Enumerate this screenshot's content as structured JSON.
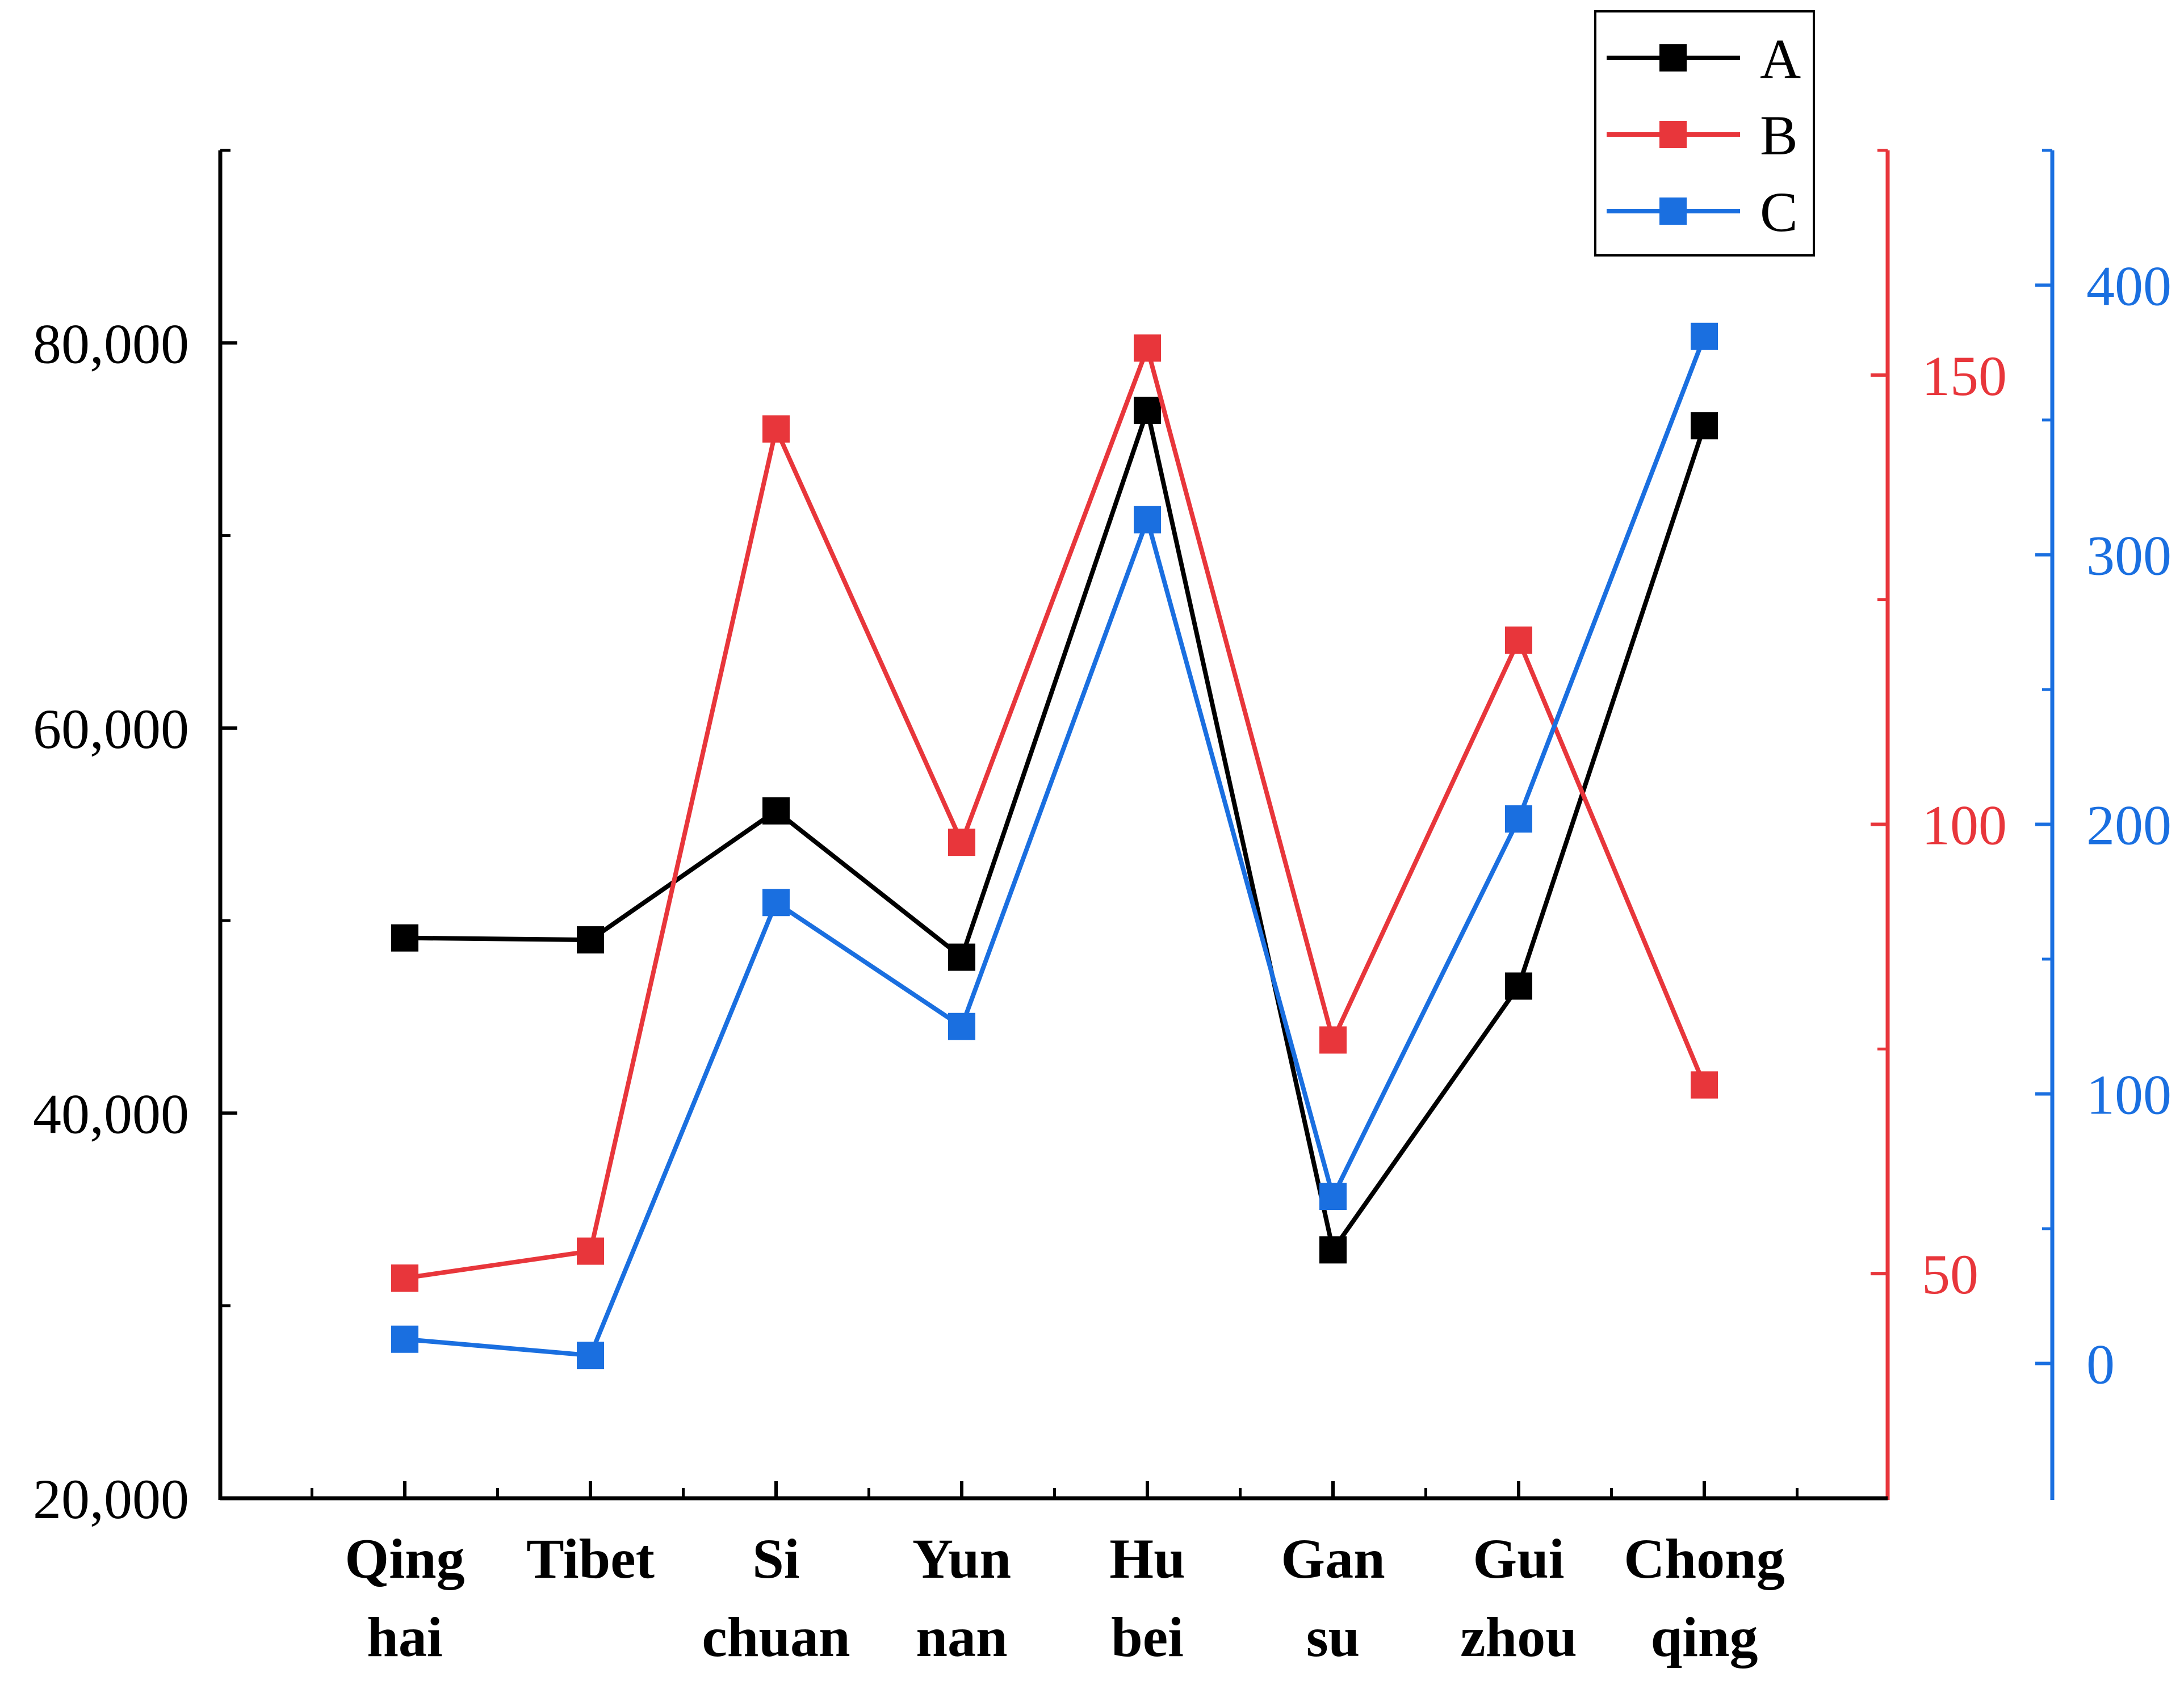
{
  "chart_data": {
    "type": "line",
    "title": "",
    "xlabel": "",
    "categories": [
      [
        "Qing",
        "hai"
      ],
      [
        "Tibet"
      ],
      [
        "Si",
        "chuan"
      ],
      [
        "Yun",
        "nan"
      ],
      [
        "Hu",
        "bei"
      ],
      [
        "Gan",
        "su"
      ],
      [
        "Gui",
        "zhou"
      ],
      [
        "Chong",
        "qing"
      ]
    ],
    "series": [
      {
        "name": "A",
        "axis": "left",
        "color": "#000000",
        "values": [
          49100,
          49000,
          55700,
          48100,
          76500,
          32900,
          46600,
          75700
        ]
      },
      {
        "name": "B",
        "axis": "right1",
        "color": "#e8363b",
        "values": [
          49.5,
          52.5,
          144,
          98,
          153,
          76,
          120.5,
          71
        ]
      },
      {
        "name": "C",
        "axis": "right2",
        "color": "#1a6fe0",
        "values": [
          9,
          3,
          171,
          125,
          313,
          62,
          202,
          381
        ]
      }
    ],
    "axes": {
      "left": {
        "ylim": [
          20000,
          90000
        ],
        "ticks": [
          20000,
          40000,
          60000,
          80000
        ],
        "tick_labels": [
          "20,000",
          "40,000",
          "60,000",
          "80,000"
        ],
        "minor": [
          30000,
          50000,
          70000,
          90000
        ],
        "color": "#000000"
      },
      "right1": {
        "ylim": [
          25,
          175
        ],
        "ticks": [
          50,
          100,
          150
        ],
        "tick_labels": [
          "50",
          "100",
          "150"
        ],
        "minor": [
          75,
          125,
          175
        ],
        "color": "#e8363b"
      },
      "right2": {
        "ylim": [
          -50,
          450
        ],
        "ticks": [
          0,
          100,
          200,
          300,
          400
        ],
        "tick_labels": [
          "0",
          "100",
          "200",
          "300",
          "400"
        ],
        "minor": [
          50,
          150,
          250,
          350,
          450
        ],
        "color": "#1a6fe0"
      }
    },
    "legend": {
      "position": "top-right",
      "entries": [
        "A",
        "B",
        "C"
      ]
    }
  }
}
